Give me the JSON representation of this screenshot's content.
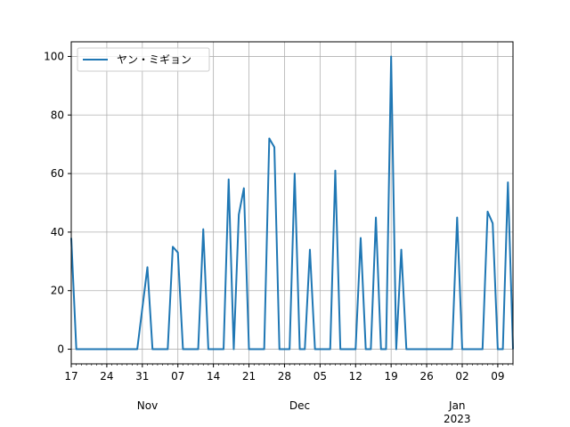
{
  "chart_data": {
    "type": "line",
    "title": "",
    "xlabel": "",
    "ylabel": "",
    "x_start": "2022-10-17",
    "x_end": "2023-01-12",
    "ylim": [
      -5,
      105
    ],
    "grid": true,
    "legend_position": "upper-left",
    "colors": {
      "series": "#1f77b4",
      "grid": "#b0b0b0",
      "axis": "#000000"
    },
    "y_ticks": [
      0,
      20,
      40,
      60,
      80,
      100
    ],
    "x_day_ticks": [
      {
        "date": "2022-10-17",
        "label": "17"
      },
      {
        "date": "2022-10-24",
        "label": "24"
      },
      {
        "date": "2022-10-31",
        "label": "31"
      },
      {
        "date": "2022-11-07",
        "label": "07"
      },
      {
        "date": "2022-11-14",
        "label": "14"
      },
      {
        "date": "2022-11-21",
        "label": "21"
      },
      {
        "date": "2022-11-28",
        "label": "28"
      },
      {
        "date": "2022-12-05",
        "label": "05"
      },
      {
        "date": "2022-12-12",
        "label": "12"
      },
      {
        "date": "2022-12-19",
        "label": "19"
      },
      {
        "date": "2022-12-26",
        "label": "26"
      },
      {
        "date": "2023-01-02",
        "label": "02"
      },
      {
        "date": "2023-01-09",
        "label": "09"
      }
    ],
    "x_month_labels": [
      {
        "date": "2022-11-01",
        "label": "Nov"
      },
      {
        "date": "2022-12-01",
        "label": "Dec"
      },
      {
        "date": "2023-01-01",
        "label": "Jan",
        "sublabel": "2023"
      }
    ],
    "series": [
      {
        "name": "ヤン・ミギョン",
        "points": [
          [
            "2022-10-17",
            38
          ],
          [
            "2022-10-18",
            0
          ],
          [
            "2022-10-30",
            0
          ],
          [
            "2022-11-01",
            28
          ],
          [
            "2022-11-02",
            0
          ],
          [
            "2022-11-05",
            0
          ],
          [
            "2022-11-06",
            35
          ],
          [
            "2022-11-07",
            33
          ],
          [
            "2022-11-08",
            0
          ],
          [
            "2022-11-11",
            0
          ],
          [
            "2022-11-12",
            41
          ],
          [
            "2022-11-13",
            0
          ],
          [
            "2022-11-16",
            0
          ],
          [
            "2022-11-17",
            58
          ],
          [
            "2022-11-18",
            0
          ],
          [
            "2022-11-19",
            46
          ],
          [
            "2022-11-20",
            55
          ],
          [
            "2022-11-21",
            0
          ],
          [
            "2022-11-24",
            0
          ],
          [
            "2022-11-25",
            72
          ],
          [
            "2022-11-26",
            69
          ],
          [
            "2022-11-27",
            0
          ],
          [
            "2022-11-29",
            0
          ],
          [
            "2022-11-30",
            60
          ],
          [
            "2022-12-01",
            0
          ],
          [
            "2022-12-02",
            0
          ],
          [
            "2022-12-03",
            34
          ],
          [
            "2022-12-04",
            0
          ],
          [
            "2022-12-07",
            0
          ],
          [
            "2022-12-08",
            61
          ],
          [
            "2022-12-09",
            0
          ],
          [
            "2022-12-12",
            0
          ],
          [
            "2022-12-13",
            38
          ],
          [
            "2022-12-14",
            0
          ],
          [
            "2022-12-15",
            0
          ],
          [
            "2022-12-16",
            45
          ],
          [
            "2022-12-17",
            0
          ],
          [
            "2022-12-18",
            0
          ],
          [
            "2022-12-19",
            100
          ],
          [
            "2022-12-20",
            0
          ],
          [
            "2022-12-21",
            34
          ],
          [
            "2022-12-22",
            0
          ],
          [
            "2022-12-31",
            0
          ],
          [
            "2023-01-01",
            45
          ],
          [
            "2023-01-02",
            0
          ],
          [
            "2023-01-06",
            0
          ],
          [
            "2023-01-07",
            47
          ],
          [
            "2023-01-08",
            43
          ],
          [
            "2023-01-09",
            0
          ],
          [
            "2023-01-10",
            0
          ],
          [
            "2023-01-11",
            57
          ],
          [
            "2023-01-12",
            0
          ]
        ]
      }
    ]
  }
}
